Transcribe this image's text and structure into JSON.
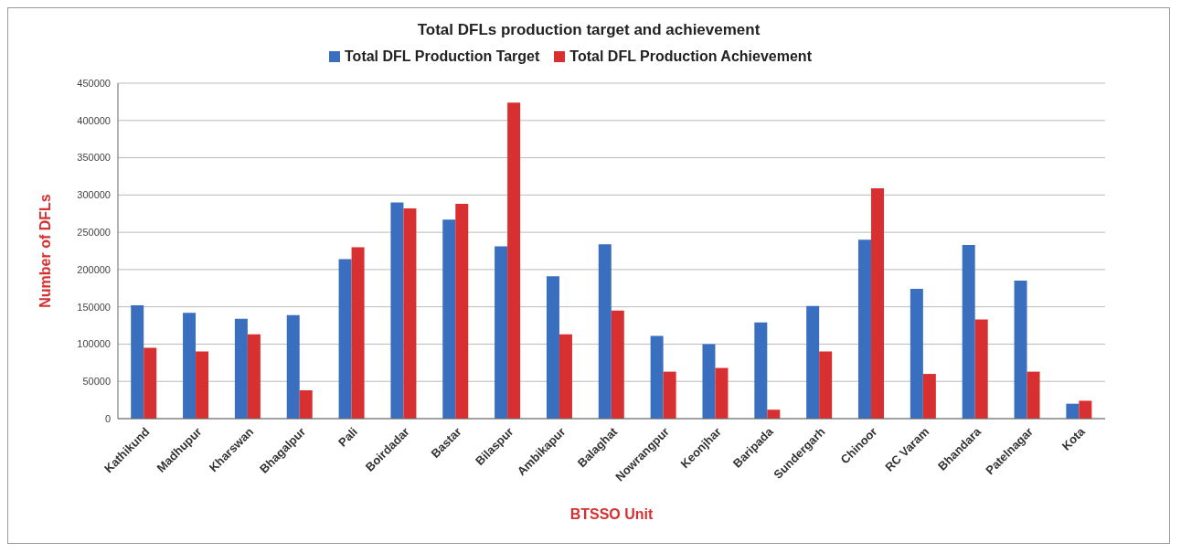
{
  "chart_data": {
    "type": "bar",
    "title": "Total DFLs production target and achievement",
    "xlabel": "BTSSO Unit",
    "ylabel": "Number of DFLs",
    "categories": [
      "Kathikund",
      "Madhupur",
      "Kharswan",
      "Bhagalpur",
      "Pali",
      "Boirdadar",
      "Bastar",
      "Bilaspur",
      "Ambikapur",
      "Balaghat",
      "Nowrangpur",
      "Keonjhar",
      "Baripada",
      "Sundergarh",
      "Chinoor",
      "RC Varam",
      "Bhandara",
      "Patelnagar",
      "Kota"
    ],
    "series": [
      {
        "name": "Total DFL Production Target",
        "color": "#3a6fc0",
        "values": [
          152000,
          142000,
          134000,
          139000,
          214000,
          290000,
          267000,
          231000,
          191000,
          234000,
          111000,
          100000,
          129000,
          151000,
          240000,
          174000,
          233000,
          185000,
          20000
        ]
      },
      {
        "name": "Total DFL Production Achievement",
        "color": "#d83030",
        "values": [
          95000,
          90000,
          113000,
          38000,
          230000,
          282000,
          288000,
          424000,
          113000,
          145000,
          63000,
          68000,
          12000,
          90000,
          309000,
          60000,
          133000,
          63000,
          24000
        ]
      }
    ],
    "ylim": [
      0,
      450000
    ],
    "yticks": [
      0,
      50000,
      100000,
      150000,
      200000,
      250000,
      300000,
      350000,
      400000,
      450000
    ],
    "grid": "y",
    "legend": "top"
  }
}
